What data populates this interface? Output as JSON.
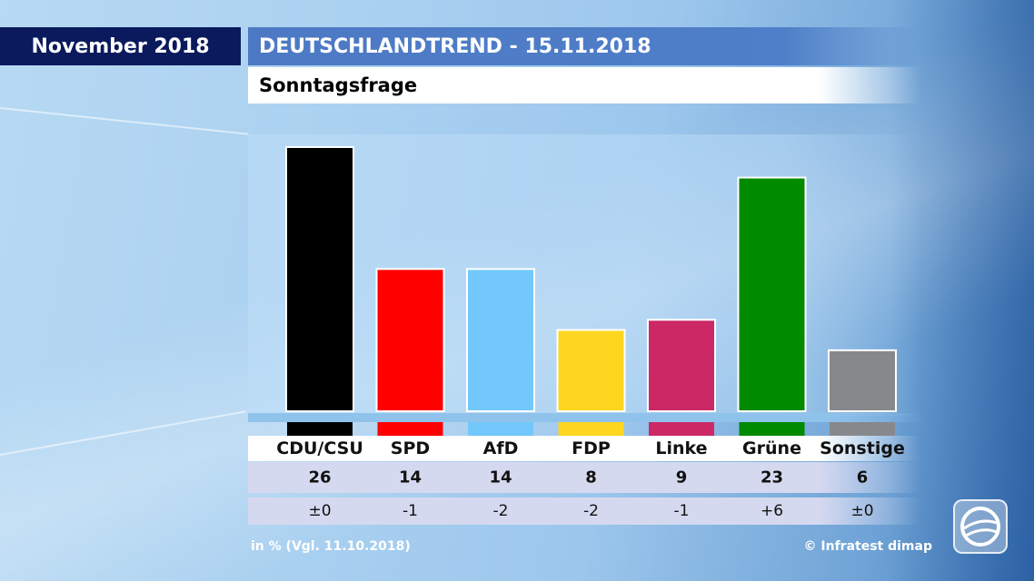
{
  "header": {
    "month": "November 2018",
    "title": "DEUTSCHLANDTREND - 15.11.2018",
    "subtitle": "Sonntagsfrage"
  },
  "footer": {
    "note": "in % (Vgl. 11.10.2018)",
    "source": "© Infratest dimap"
  },
  "chart_data": {
    "type": "bar",
    "title": "Sonntagsfrage",
    "categories": [
      "CDU/CSU",
      "SPD",
      "AfD",
      "FDP",
      "Linke",
      "Grüne",
      "Sonstige"
    ],
    "values": [
      26,
      14,
      14,
      8,
      9,
      23,
      6
    ],
    "changes": [
      "±0",
      "-1",
      "-2",
      "-2",
      "-1",
      "+6",
      "±0"
    ],
    "colors": [
      "#000000",
      "#ff0000",
      "#72c8fa",
      "#fdd61f",
      "#cc2866",
      "#008a00",
      "#87888c"
    ],
    "ylim": [
      0,
      27
    ],
    "grid": false,
    "legend": "none"
  }
}
